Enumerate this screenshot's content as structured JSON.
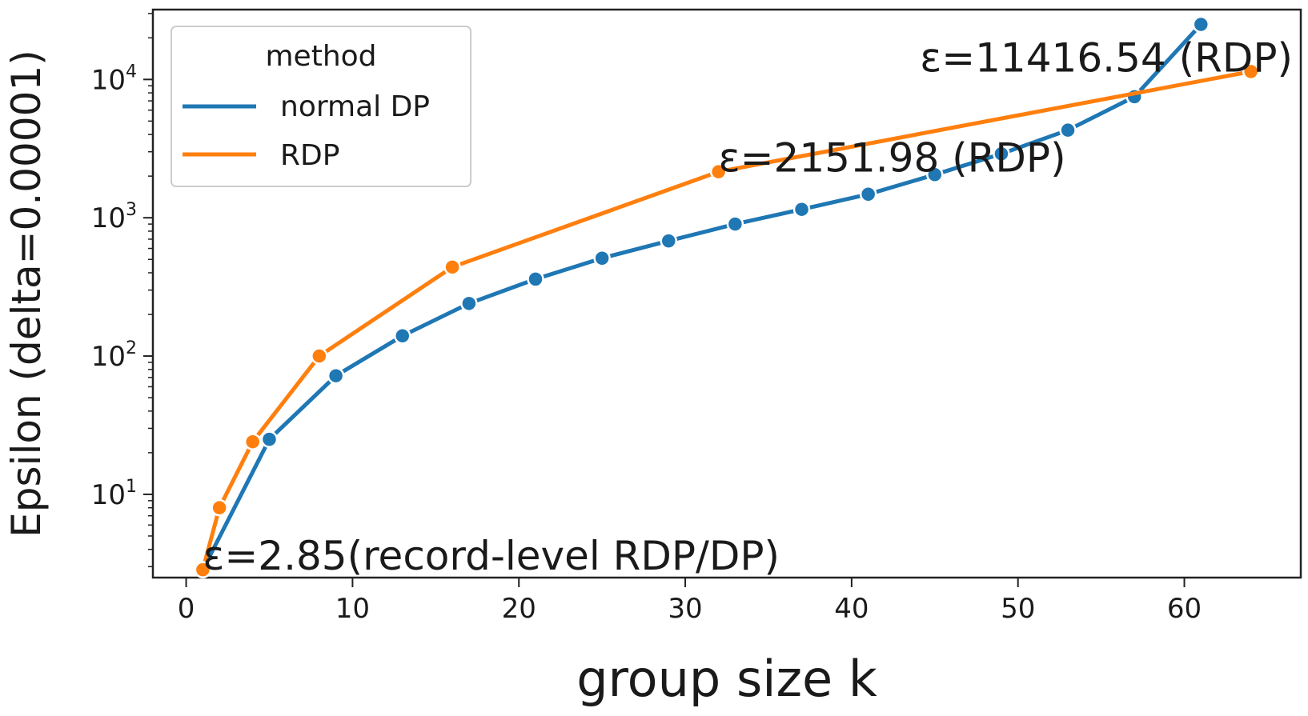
{
  "chart_data": {
    "type": "line",
    "title": "",
    "xlabel": "group size k",
    "ylabel": "Epsilon (delta=0.00001)",
    "yscale": "log",
    "xlim": [
      -2,
      67
    ],
    "ylim": [
      2.5,
      32000
    ],
    "grid": false,
    "x_ticks": [
      0,
      10,
      20,
      30,
      40,
      50,
      60
    ],
    "y_ticks": [
      {
        "base": "10",
        "exp": "1",
        "value": 10
      },
      {
        "base": "10",
        "exp": "2",
        "value": 100
      },
      {
        "base": "10",
        "exp": "3",
        "value": 1000
      },
      {
        "base": "10",
        "exp": "4",
        "value": 10000
      }
    ],
    "legend": {
      "title": "method",
      "position": "top-left",
      "entries": [
        {
          "label": "normal DP",
          "color": "#1f77b4"
        },
        {
          "label": "RDP",
          "color": "#ff7f0e"
        }
      ]
    },
    "series": [
      {
        "name": "normal DP",
        "color": "#1f77b4",
        "x": [
          1,
          5,
          9,
          13,
          17,
          21,
          25,
          29,
          33,
          37,
          41,
          45,
          49,
          53,
          57,
          61
        ],
        "y": [
          2.85,
          25,
          72,
          140,
          240,
          360,
          510,
          680,
          900,
          1150,
          1480,
          2050,
          2900,
          4300,
          7500,
          25000
        ]
      },
      {
        "name": "RDP",
        "color": "#ff7f0e",
        "x": [
          1,
          2,
          4,
          8,
          16,
          32,
          64
        ],
        "y": [
          2.85,
          8,
          24,
          100,
          440,
          2151.98,
          11416.54
        ]
      }
    ],
    "annotations": [
      {
        "text": "ε=2.85(record-level RDP/DP)",
        "x": 1,
        "y": 2.85
      },
      {
        "text": "ε=2151.98 (RDP)",
        "x": 32,
        "y": 2151.98
      },
      {
        "text": "ε=11416.54 (RDP)",
        "x": 64,
        "y": 11416.54
      }
    ]
  }
}
